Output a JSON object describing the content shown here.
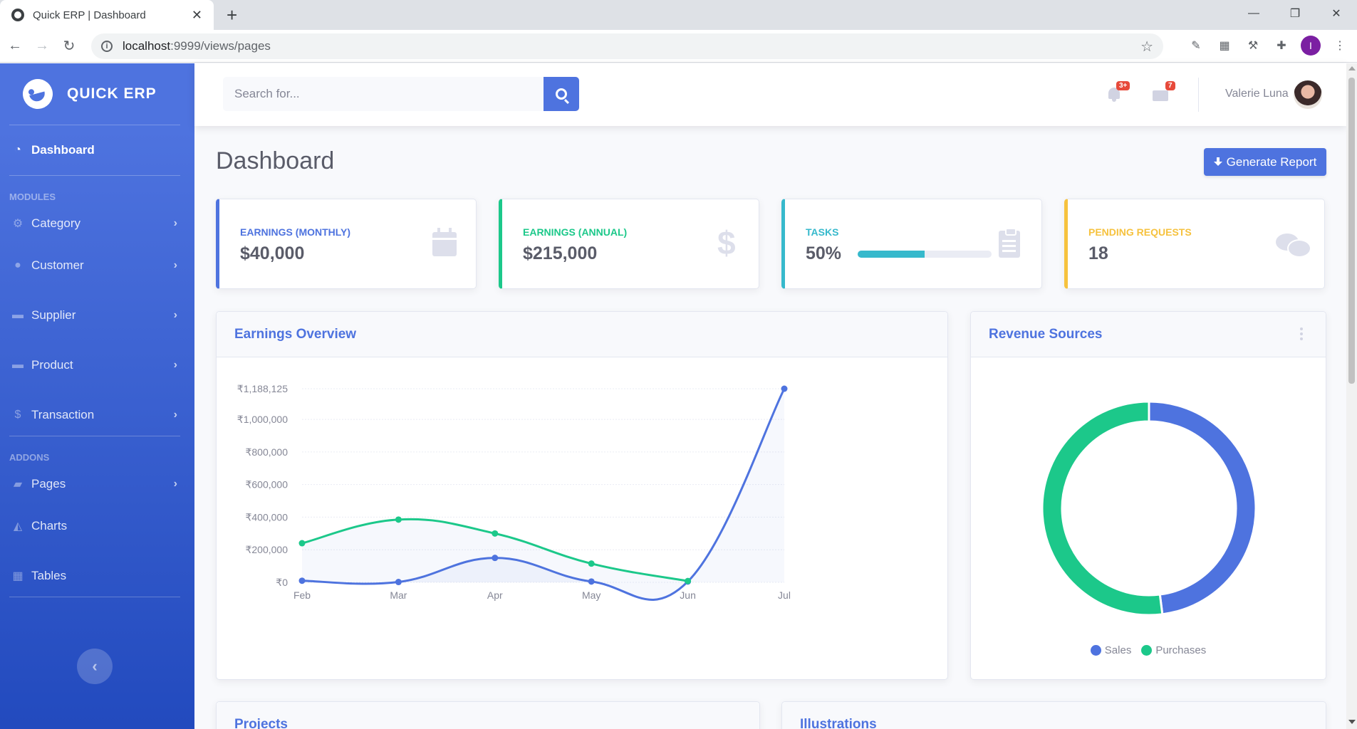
{
  "browser": {
    "tab_title": "Quick ERP | Dashboard",
    "tab_close": "✕",
    "new_tab": "+",
    "url_host": "localhost",
    "url_rest": ":9999/views/pages",
    "window_controls": {
      "minimize": "—",
      "maximize": "❐",
      "close": "✕"
    },
    "profile_initial": "I"
  },
  "sidebar": {
    "brand": "QUICK ERP",
    "dashboard_label": "Dashboard",
    "modules_heading": "MODULES",
    "modules": [
      {
        "label": "Category",
        "icon": "gear-icon"
      },
      {
        "label": "Customer",
        "icon": "user-icon"
      },
      {
        "label": "Supplier",
        "icon": "truck-icon"
      },
      {
        "label": "Product",
        "icon": "box-icon"
      },
      {
        "label": "Transaction",
        "icon": "dollar-icon"
      }
    ],
    "addons_heading": "ADDONS",
    "addons": [
      {
        "label": "Pages",
        "icon": "folder-icon",
        "has_children": true
      },
      {
        "label": "Charts",
        "icon": "area-chart-icon",
        "has_children": false
      },
      {
        "label": "Tables",
        "icon": "table-icon",
        "has_children": false
      }
    ]
  },
  "topbar": {
    "search_placeholder": "Search for...",
    "alerts_badge": "3+",
    "messages_badge": "7",
    "user_name": "Valerie Luna"
  },
  "page": {
    "title": "Dashboard",
    "generate_report": "Generate Report"
  },
  "stats": [
    {
      "label": "EARNINGS (MONTHLY)",
      "value": "$40,000",
      "color": "#4e73df",
      "icon": "calendar-icon"
    },
    {
      "label": "EARNINGS (ANNUAL)",
      "value": "$215,000",
      "color": "#1cc88a",
      "icon": "dollar-icon"
    },
    {
      "label": "TASKS",
      "value": "50%",
      "progress": 0.5,
      "color": "#36b9cc",
      "icon": "clipboard-icon"
    },
    {
      "label": "PENDING REQUESTS",
      "value": "18",
      "color": "#f6c23e",
      "icon": "comments-icon"
    }
  ],
  "panels": {
    "earnings_title": "Earnings Overview",
    "revenue_title": "Revenue Sources",
    "projects_title": "Projects",
    "illustrations_title": "Illustrations"
  },
  "chart_data": [
    {
      "type": "line",
      "title": "Earnings Overview",
      "categories": [
        "Feb",
        "Mar",
        "Apr",
        "May",
        "Jun",
        "Jul"
      ],
      "y_ticks": [
        "₹0",
        "₹200,000",
        "₹400,000",
        "₹600,000",
        "₹800,000",
        "₹1,000,000",
        "₹1,188,125"
      ],
      "ylim": [
        0,
        1188125
      ],
      "grid": true,
      "series": [
        {
          "values": [
            10000,
            2000,
            150000,
            5000,
            5000,
            1188125
          ],
          "color": "#4e73df"
        },
        {
          "values": [
            240000,
            385000,
            300000,
            115000,
            8000,
            null
          ],
          "color": "#1cc88a"
        }
      ]
    },
    {
      "type": "pie",
      "title": "Revenue Sources",
      "series": [
        {
          "name": "Sales",
          "value": 48,
          "color": "#4e73df"
        },
        {
          "name": "Purchases",
          "value": 52,
          "color": "#1cc88a"
        }
      ],
      "legend": "bottom"
    }
  ]
}
